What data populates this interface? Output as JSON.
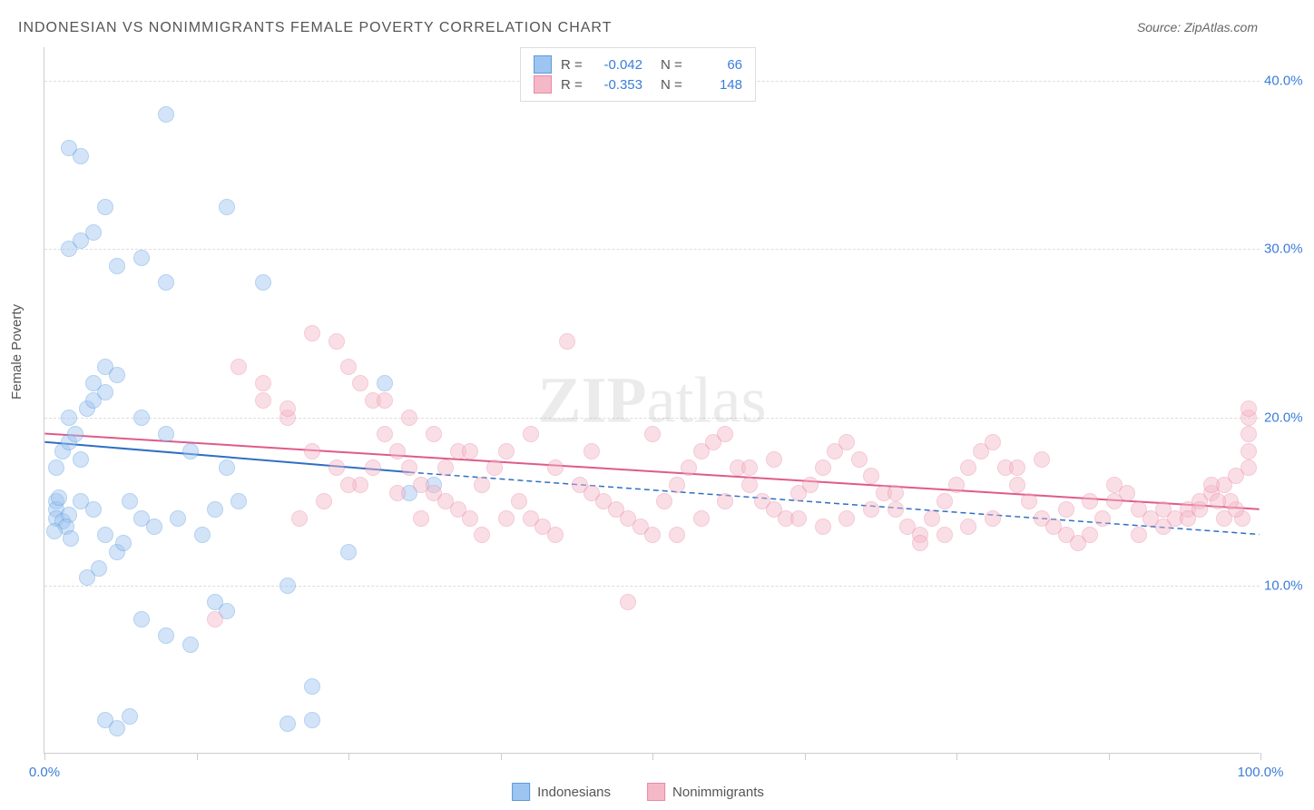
{
  "title": "INDONESIAN VS NONIMMIGRANTS FEMALE POVERTY CORRELATION CHART",
  "source": "Source: ZipAtlas.com",
  "ylabel": "Female Poverty",
  "watermark_bold": "ZIP",
  "watermark_rest": "atlas",
  "chart": {
    "type": "scatter",
    "background_color": "#ffffff",
    "grid_color": "#dddddd",
    "axis_color": "#cccccc",
    "tick_label_color": "#3b7dd8",
    "text_color": "#555555",
    "xlim": [
      0,
      100
    ],
    "ylim": [
      0,
      42
    ],
    "yticks": [
      10,
      20,
      30,
      40
    ],
    "ytick_labels": [
      "10.0%",
      "20.0%",
      "30.0%",
      "40.0%"
    ],
    "xticks": [
      0,
      12.5,
      25,
      37.5,
      50,
      62.5,
      75,
      87.5,
      100
    ],
    "xtick_labels": {
      "0": "0.0%",
      "100": "100.0%"
    },
    "marker_radius": 9,
    "marker_opacity": 0.45,
    "series": [
      {
        "name": "Indonesians",
        "fill_color": "#9ec5f0",
        "stroke_color": "#5a9bde",
        "R": "-0.042",
        "N": "66",
        "trend": {
          "x1": 0,
          "y1": 18.5,
          "x2": 30,
          "y2": 16.7,
          "extend_to": 100,
          "y_extend": 13.0,
          "color": "#2f6fc4",
          "width": 2
        },
        "points": [
          [
            1,
            15
          ],
          [
            1,
            14.5
          ],
          [
            1,
            14
          ],
          [
            1.5,
            13.8
          ],
          [
            2,
            14.2
          ],
          [
            1.2,
            15.2
          ],
          [
            1.8,
            13.5
          ],
          [
            2.2,
            12.8
          ],
          [
            0.8,
            13.2
          ],
          [
            1.5,
            18
          ],
          [
            2,
            18.5
          ],
          [
            2.5,
            19
          ],
          [
            1,
            17
          ],
          [
            3,
            17.5
          ],
          [
            2,
            20
          ],
          [
            3.5,
            20.5
          ],
          [
            4,
            21
          ],
          [
            5,
            21.5
          ],
          [
            3,
            15
          ],
          [
            4,
            14.5
          ],
          [
            5,
            13
          ],
          [
            6,
            12
          ],
          [
            4.5,
            11
          ],
          [
            3.5,
            10.5
          ],
          [
            6.5,
            12.5
          ],
          [
            2,
            30
          ],
          [
            3,
            30.5
          ],
          [
            4,
            31
          ],
          [
            5,
            32.5
          ],
          [
            6,
            29
          ],
          [
            8,
            29.5
          ],
          [
            10,
            28
          ],
          [
            2,
            36
          ],
          [
            3,
            35.5
          ],
          [
            10,
            38
          ],
          [
            15,
            32.5
          ],
          [
            18,
            28
          ],
          [
            8,
            20
          ],
          [
            10,
            19
          ],
          [
            12,
            18
          ],
          [
            15,
            17
          ],
          [
            20,
            10
          ],
          [
            22,
            4
          ],
          [
            25,
            12
          ],
          [
            28,
            22
          ],
          [
            30,
            15.5
          ],
          [
            32,
            16
          ],
          [
            8,
            8
          ],
          [
            10,
            7
          ],
          [
            12,
            6.5
          ],
          [
            14,
            9
          ],
          [
            15,
            8.5
          ],
          [
            5,
            2
          ],
          [
            6,
            1.5
          ],
          [
            7,
            2.2
          ],
          [
            20,
            1.8
          ],
          [
            22,
            2
          ],
          [
            4,
            22
          ],
          [
            5,
            23
          ],
          [
            6,
            22.5
          ],
          [
            7,
            15
          ],
          [
            8,
            14
          ],
          [
            9,
            13.5
          ],
          [
            11,
            14
          ],
          [
            13,
            13
          ],
          [
            14,
            14.5
          ],
          [
            16,
            15
          ]
        ]
      },
      {
        "name": "Nonimmigrants",
        "fill_color": "#f5b8c8",
        "stroke_color": "#e88aa5",
        "R": "-0.353",
        "N": "148",
        "trend": {
          "x1": 0,
          "y1": 19.0,
          "x2": 100,
          "y2": 14.5,
          "color": "#e05a8a",
          "width": 2
        },
        "points": [
          [
            14,
            8
          ],
          [
            16,
            23
          ],
          [
            18,
            22
          ],
          [
            20,
            20
          ],
          [
            22,
            25
          ],
          [
            24,
            24.5
          ],
          [
            25,
            23
          ],
          [
            26,
            22
          ],
          [
            27,
            21
          ],
          [
            28,
            19
          ],
          [
            29,
            18
          ],
          [
            30,
            17
          ],
          [
            31,
            16
          ],
          [
            32,
            15.5
          ],
          [
            33,
            15
          ],
          [
            34,
            14.5
          ],
          [
            35,
            14
          ],
          [
            36,
            16
          ],
          [
            37,
            17
          ],
          [
            38,
            18
          ],
          [
            39,
            15
          ],
          [
            40,
            14
          ],
          [
            41,
            13.5
          ],
          [
            42,
            13
          ],
          [
            43,
            24.5
          ],
          [
            44,
            16
          ],
          [
            45,
            15.5
          ],
          [
            46,
            15
          ],
          [
            47,
            14.5
          ],
          [
            48,
            14
          ],
          [
            49,
            13.5
          ],
          [
            50,
            13
          ],
          [
            51,
            15
          ],
          [
            52,
            16
          ],
          [
            53,
            17
          ],
          [
            54,
            18
          ],
          [
            55,
            18.5
          ],
          [
            56,
            19
          ],
          [
            57,
            17
          ],
          [
            58,
            16
          ],
          [
            59,
            15
          ],
          [
            60,
            14.5
          ],
          [
            61,
            14
          ],
          [
            62,
            15.5
          ],
          [
            63,
            16
          ],
          [
            64,
            17
          ],
          [
            65,
            18
          ],
          [
            66,
            18.5
          ],
          [
            67,
            17.5
          ],
          [
            68,
            16.5
          ],
          [
            69,
            15.5
          ],
          [
            70,
            14.5
          ],
          [
            71,
            13.5
          ],
          [
            72,
            13
          ],
          [
            73,
            14
          ],
          [
            74,
            15
          ],
          [
            75,
            16
          ],
          [
            76,
            17
          ],
          [
            77,
            18
          ],
          [
            78,
            18.5
          ],
          [
            79,
            17
          ],
          [
            80,
            16
          ],
          [
            81,
            15
          ],
          [
            82,
            14
          ],
          [
            83,
            13.5
          ],
          [
            84,
            13
          ],
          [
            85,
            12.5
          ],
          [
            86,
            13
          ],
          [
            87,
            14
          ],
          [
            88,
            15
          ],
          [
            89,
            15.5
          ],
          [
            90,
            14.5
          ],
          [
            91,
            14
          ],
          [
            92,
            13.5
          ],
          [
            93,
            14
          ],
          [
            94,
            14.5
          ],
          [
            95,
            15
          ],
          [
            96,
            15.5
          ],
          [
            97,
            16
          ],
          [
            98,
            16.5
          ],
          [
            99,
            17
          ],
          [
            99,
            18
          ],
          [
            99,
            19
          ],
          [
            99,
            20
          ],
          [
            99,
            20.5
          ],
          [
            98.5,
            14
          ],
          [
            98,
            14.5
          ],
          [
            97.5,
            15
          ],
          [
            97,
            14
          ],
          [
            96.5,
            15
          ],
          [
            48,
            9
          ],
          [
            45,
            18
          ],
          [
            42,
            17
          ],
          [
            40,
            19
          ],
          [
            38,
            14
          ],
          [
            36,
            13
          ],
          [
            34,
            18
          ],
          [
            32,
            19
          ],
          [
            30,
            20
          ],
          [
            28,
            21
          ],
          [
            26,
            16
          ],
          [
            24,
            17
          ],
          [
            22,
            18
          ],
          [
            20,
            20.5
          ],
          [
            18,
            21
          ],
          [
            50,
            19
          ],
          [
            52,
            13
          ],
          [
            54,
            14
          ],
          [
            56,
            15
          ],
          [
            58,
            17
          ],
          [
            60,
            17.5
          ],
          [
            62,
            14
          ],
          [
            64,
            13.5
          ],
          [
            66,
            14
          ],
          [
            68,
            14.5
          ],
          [
            70,
            15.5
          ],
          [
            72,
            12.5
          ],
          [
            74,
            13
          ],
          [
            76,
            13.5
          ],
          [
            78,
            14
          ],
          [
            80,
            17
          ],
          [
            82,
            17.5
          ],
          [
            84,
            14.5
          ],
          [
            86,
            15
          ],
          [
            88,
            16
          ],
          [
            90,
            13
          ],
          [
            92,
            14.5
          ],
          [
            94,
            14
          ],
          [
            95,
            14.5
          ],
          [
            96,
            16
          ],
          [
            21,
            14
          ],
          [
            23,
            15
          ],
          [
            25,
            16
          ],
          [
            27,
            17
          ],
          [
            29,
            15.5
          ],
          [
            31,
            14
          ],
          [
            33,
            17
          ],
          [
            35,
            18
          ]
        ]
      }
    ]
  },
  "legend_bottom": [
    {
      "label": "Indonesians",
      "fill": "#9ec5f0",
      "stroke": "#5a9bde"
    },
    {
      "label": "Nonimmigrants",
      "fill": "#f5b8c8",
      "stroke": "#e88aa5"
    }
  ]
}
